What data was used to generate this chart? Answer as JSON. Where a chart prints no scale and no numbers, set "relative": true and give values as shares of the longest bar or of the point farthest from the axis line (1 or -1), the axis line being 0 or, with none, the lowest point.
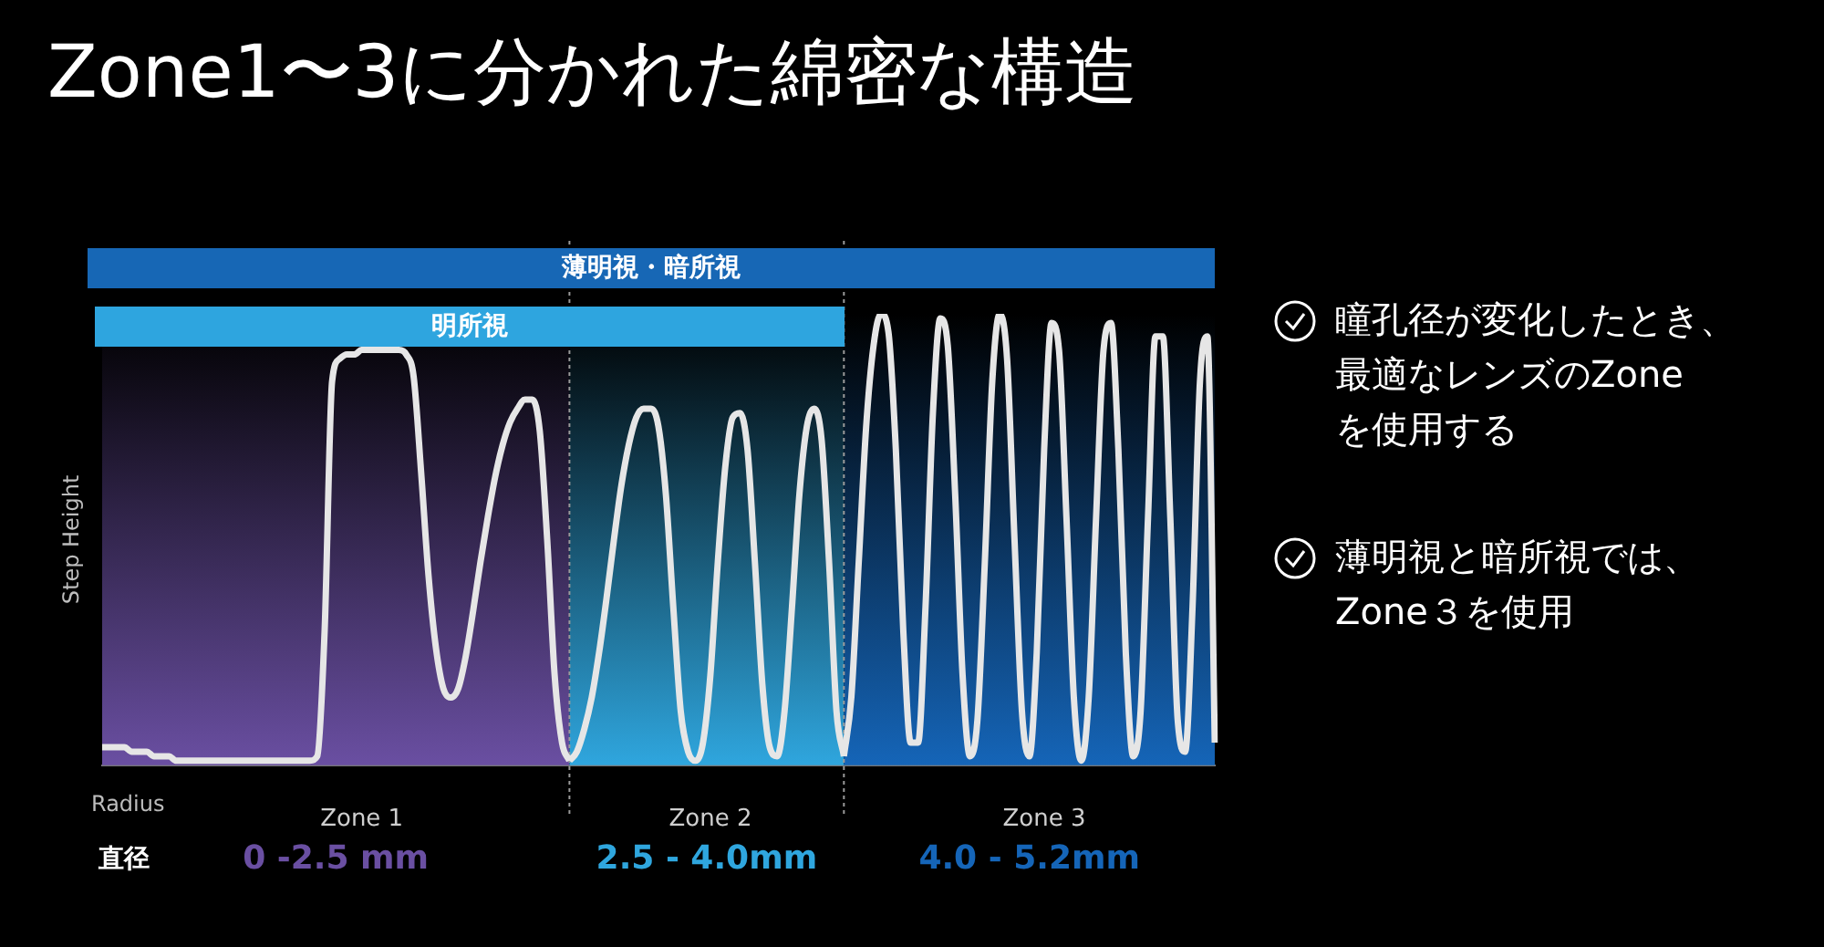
{
  "chart_data": {
    "type": "line",
    "title": "Zone1〜3に分かれた綿密な構造",
    "xlabel": "Radius",
    "ylabel": "Step Height",
    "relative": true,
    "grid": false,
    "legend": false,
    "tick_labels": "x",
    "marker": "none",
    "line_style": "solid",
    "categories": [
      null,
      null,
      null,
      null,
      null,
      null,
      null,
      null,
      null,
      null,
      null,
      null,
      null,
      null,
      null,
      null,
      null,
      null,
      null,
      null,
      null,
      null,
      null,
      null,
      null,
      null,
      null,
      null,
      null,
      null,
      null,
      null,
      null,
      null,
      null,
      "Zone 1",
      null,
      null,
      null,
      null,
      null,
      null,
      null,
      null,
      null,
      null,
      null,
      null,
      null,
      null,
      null,
      null,
      null,
      null,
      null,
      null,
      null,
      null,
      null,
      null,
      null,
      null,
      null,
      null,
      null,
      null,
      null,
      null,
      null,
      null,
      null,
      null,
      null,
      null,
      null,
      null,
      null,
      null,
      null,
      null,
      null,
      null,
      "Zone 2",
      null,
      null,
      null,
      null,
      null,
      null,
      null,
      null,
      null,
      null,
      null,
      null,
      null,
      null,
      null,
      null,
      null,
      null,
      null,
      null,
      null,
      null,
      null,
      null,
      null,
      null,
      null,
      null,
      null,
      null,
      null,
      null,
      null,
      null,
      null,
      null,
      null,
      null,
      null,
      null,
      null,
      null,
      null,
      null,
      "Zone 3",
      null,
      null,
      null,
      null,
      null,
      null,
      null,
      null,
      null,
      null,
      null,
      null,
      null,
      null,
      null,
      null,
      null,
      null,
      null,
      null,
      null,
      null,
      null
    ],
    "series": [
      {
        "color": "#e6e6e6",
        "values": [
          0.04,
          0.04,
          0.04,
          0.04,
          0.03,
          0.03,
          0.03,
          0.02,
          0.02,
          0.02,
          0.01,
          0.01,
          0.01,
          0.01,
          0.01,
          0.01,
          0.01,
          0.01,
          0.01,
          0.01,
          0.01,
          0.01,
          0.01,
          0.01,
          0.01,
          0.01,
          0.01,
          0.01,
          0.01,
          0.02,
          0.3,
          0.85,
          0.9,
          0.91,
          0.91,
          0.92,
          0.92,
          0.92,
          0.92,
          0.92,
          0.92,
          0.91,
          0.86,
          0.65,
          0.42,
          0.26,
          0.17,
          0.15,
          0.17,
          0.24,
          0.34,
          0.45,
          0.55,
          0.64,
          0.71,
          0.76,
          0.79,
          0.81,
          0.81,
          0.74,
          0.5,
          0.2,
          0.05,
          0.01,
          null,
          null,
          null,
          null,
          null,
          null,
          null,
          null,
          null,
          null,
          null,
          null,
          null,
          null,
          null,
          null,
          null,
          null,
          null,
          null,
          null,
          null,
          null,
          null,
          null,
          null,
          null,
          null,
          null,
          null,
          null,
          null,
          null,
          null,
          null,
          null,
          null,
          null,
          null,
          null,
          null,
          null,
          null,
          null,
          null,
          null,
          null,
          null,
          null,
          null,
          null,
          null,
          null,
          null,
          null,
          null,
          null,
          null,
          null,
          null,
          null,
          null,
          null,
          null,
          null,
          null,
          null,
          null,
          null,
          null,
          null,
          null,
          null,
          null,
          null,
          null,
          null,
          null,
          null,
          null,
          null,
          null,
          null,
          null,
          null,
          null,
          null
        ]
      },
      {
        "color": "#e6e6e6",
        "values": [
          null,
          null,
          null,
          null,
          null,
          null,
          null,
          null,
          null,
          null,
          null,
          null,
          null,
          null,
          null,
          null,
          null,
          null,
          null,
          null,
          null,
          null,
          null,
          null,
          null,
          null,
          null,
          null,
          null,
          null,
          null,
          null,
          null,
          null,
          null,
          null,
          null,
          null,
          null,
          null,
          null,
          null,
          null,
          null,
          null,
          null,
          null,
          null,
          null,
          null,
          null,
          null,
          null,
          null,
          null,
          null,
          null,
          null,
          null,
          null,
          null,
          null,
          null,
          0.01,
          0.03,
          0.08,
          0.15,
          0.25,
          0.37,
          0.5,
          0.62,
          0.71,
          0.77,
          0.79,
          0.79,
          0.75,
          0.6,
          0.35,
          0.12,
          0.03,
          0.01,
          0.05,
          0.2,
          0.45,
          0.66,
          0.77,
          0.78,
          0.7,
          0.45,
          0.18,
          0.04,
          0.02,
          0.12,
          0.35,
          0.6,
          0.75,
          0.79,
          0.72,
          0.45,
          0.12,
          0.02,
          null,
          null,
          null,
          null,
          null,
          null,
          null,
          null,
          null,
          null,
          null,
          null,
          null,
          null,
          null,
          null,
          null,
          null,
          null,
          null,
          null,
          null,
          null,
          null,
          null,
          null,
          null,
          null,
          null,
          null,
          null,
          null,
          null,
          null,
          null,
          null,
          null,
          null,
          null,
          null,
          null,
          null,
          null,
          null,
          null,
          null,
          null,
          null,
          null,
          null
        ]
      },
      {
        "color": "#e6e6e6",
        "values": [
          null,
          null,
          null,
          null,
          null,
          null,
          null,
          null,
          null,
          null,
          null,
          null,
          null,
          null,
          null,
          null,
          null,
          null,
          null,
          null,
          null,
          null,
          null,
          null,
          null,
          null,
          null,
          null,
          null,
          null,
          null,
          null,
          null,
          null,
          null,
          null,
          null,
          null,
          null,
          null,
          null,
          null,
          null,
          null,
          null,
          null,
          null,
          null,
          null,
          null,
          null,
          null,
          null,
          null,
          null,
          null,
          null,
          null,
          null,
          null,
          null,
          null,
          null,
          null,
          null,
          null,
          null,
          null,
          null,
          null,
          null,
          null,
          null,
          null,
          null,
          null,
          null,
          null,
          null,
          null,
          null,
          null,
          null,
          null,
          null,
          null,
          null,
          null,
          null,
          null,
          null,
          null,
          null,
          null,
          null,
          null,
          null,
          null,
          null,
          null,
          0.02,
          0.15,
          0.45,
          0.75,
          0.93,
          1.0,
          0.96,
          0.7,
          0.3,
          0.05,
          0.05,
          0.35,
          0.78,
          0.99,
          0.93,
          0.6,
          0.2,
          0.02,
          0.1,
          0.45,
          0.85,
          1.0,
          0.9,
          0.5,
          0.12,
          0.02,
          0.25,
          0.7,
          0.98,
          0.92,
          0.55,
          0.15,
          0.01,
          0.15,
          0.55,
          0.92,
          0.98,
          0.7,
          0.25,
          0.02,
          0.12,
          0.55,
          0.95,
          0.95,
          0.55,
          0.1,
          0.03,
          0.35,
          0.85,
          0.95,
          0.05
        ]
      }
    ],
    "annotations": [
      "薄明視・暗所視",
      "明所視",
      "直径",
      "0 -2.5 mm",
      "2.5 - 4.0mm",
      "4.0 - 5.2mm",
      "瞳孔径が変化したとき、",
      "最適なレンズのZone",
      "を使用する",
      "薄明視と暗所視では、",
      "Zone３を使用"
    ]
  }
}
